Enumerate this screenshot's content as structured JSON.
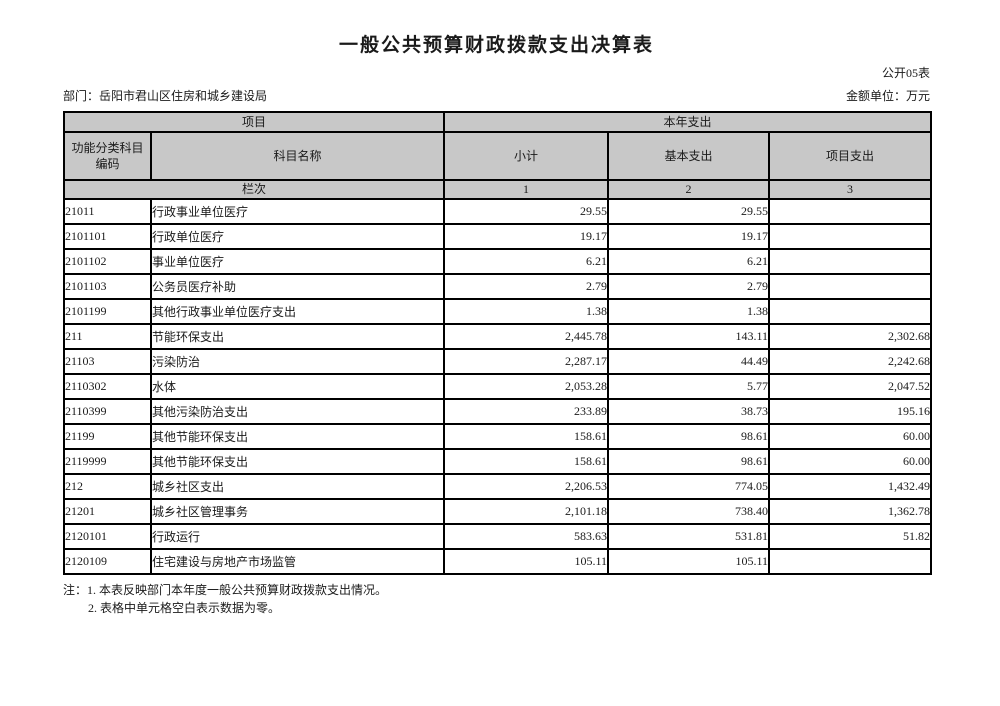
{
  "page": {
    "title": "一般公共预算财政拨款支出决算表",
    "doc_label": "公开05表",
    "department_label": "部门：岳阳市君山区住房和城乡建设局",
    "unit_label": "金额单位：万元"
  },
  "table": {
    "header": {
      "group_left": "项目",
      "group_right": "本年支出",
      "col_code": "功能分类科目编码",
      "col_name": "科目名称",
      "col_subtotal": "小计",
      "col_basic": "基本支出",
      "col_project": "项目支出",
      "lanci_label": "栏次",
      "lanci_1": "1",
      "lanci_2": "2",
      "lanci_3": "3"
    },
    "rows": [
      {
        "code": "21011",
        "name": "行政事业单位医疗",
        "subtotal": "29.55",
        "basic": "29.55",
        "project": ""
      },
      {
        "code": "2101101",
        "name": "行政单位医疗",
        "subtotal": "19.17",
        "basic": "19.17",
        "project": ""
      },
      {
        "code": "2101102",
        "name": "事业单位医疗",
        "subtotal": "6.21",
        "basic": "6.21",
        "project": ""
      },
      {
        "code": "2101103",
        "name": "公务员医疗补助",
        "subtotal": "2.79",
        "basic": "2.79",
        "project": ""
      },
      {
        "code": "2101199",
        "name": "其他行政事业单位医疗支出",
        "subtotal": "1.38",
        "basic": "1.38",
        "project": ""
      },
      {
        "code": "211",
        "name": "节能环保支出",
        "subtotal": "2,445.78",
        "basic": "143.11",
        "project": "2,302.68"
      },
      {
        "code": "21103",
        "name": "污染防治",
        "subtotal": "2,287.17",
        "basic": "44.49",
        "project": "2,242.68"
      },
      {
        "code": "2110302",
        "name": "水体",
        "subtotal": "2,053.28",
        "basic": "5.77",
        "project": "2,047.52"
      },
      {
        "code": "2110399",
        "name": "其他污染防治支出",
        "subtotal": "233.89",
        "basic": "38.73",
        "project": "195.16"
      },
      {
        "code": "21199",
        "name": "其他节能环保支出",
        "subtotal": "158.61",
        "basic": "98.61",
        "project": "60.00"
      },
      {
        "code": "2119999",
        "name": "其他节能环保支出",
        "subtotal": "158.61",
        "basic": "98.61",
        "project": "60.00"
      },
      {
        "code": "212",
        "name": "城乡社区支出",
        "subtotal": "2,206.53",
        "basic": "774.05",
        "project": "1,432.49"
      },
      {
        "code": "21201",
        "name": "城乡社区管理事务",
        "subtotal": "2,101.18",
        "basic": "738.40",
        "project": "1,362.78"
      },
      {
        "code": "2120101",
        "name": "行政运行",
        "subtotal": "583.63",
        "basic": "531.81",
        "project": "51.82"
      },
      {
        "code": "2120109",
        "name": "住宅建设与房地产市场监管",
        "subtotal": "105.11",
        "basic": "105.11",
        "project": ""
      }
    ]
  },
  "notes": {
    "line1": "注：1. 本表反映部门本年度一般公共预算财政拨款支出情况。",
    "line2": "2. 表格中单元格空白表示数据为零。"
  },
  "colors": {
    "header_bg": "#c8c8c8",
    "border": "#000000",
    "page_bg": "#ffffff"
  }
}
